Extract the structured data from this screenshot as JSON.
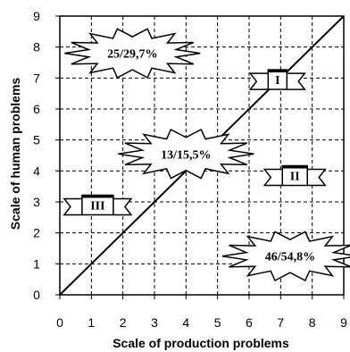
{
  "chart_data": {
    "type": "scatter",
    "xlabel": "Scale of production problems",
    "ylabel": "Scale of human problems",
    "xlim": [
      0,
      9
    ],
    "ylim": [
      0,
      9
    ],
    "x_ticks": [
      "0",
      "1",
      "2",
      "3",
      "4",
      "5",
      "6",
      "7",
      "8",
      "9"
    ],
    "y_ticks": [
      "0",
      "1",
      "2",
      "3",
      "4",
      "5",
      "6",
      "7",
      "8",
      "9"
    ],
    "grid": true,
    "grid_style": "dashed",
    "diagonal_line": {
      "from": [
        0,
        0
      ],
      "to": [
        9,
        9
      ]
    },
    "annotations": [
      {
        "text": "25/29,7%",
        "x": 2.3,
        "y": 7.8
      },
      {
        "text": "13/15,5%",
        "x": 4.0,
        "y": 4.55
      },
      {
        "text": "46/54,8%",
        "x": 7.3,
        "y": 1.25
      }
    ],
    "zone_labels": [
      {
        "text": "I",
        "x": 6.9,
        "y": 6.95
      },
      {
        "text": "II",
        "x": 7.45,
        "y": 3.85
      },
      {
        "text": "III",
        "x": 1.2,
        "y": 2.9
      }
    ]
  }
}
